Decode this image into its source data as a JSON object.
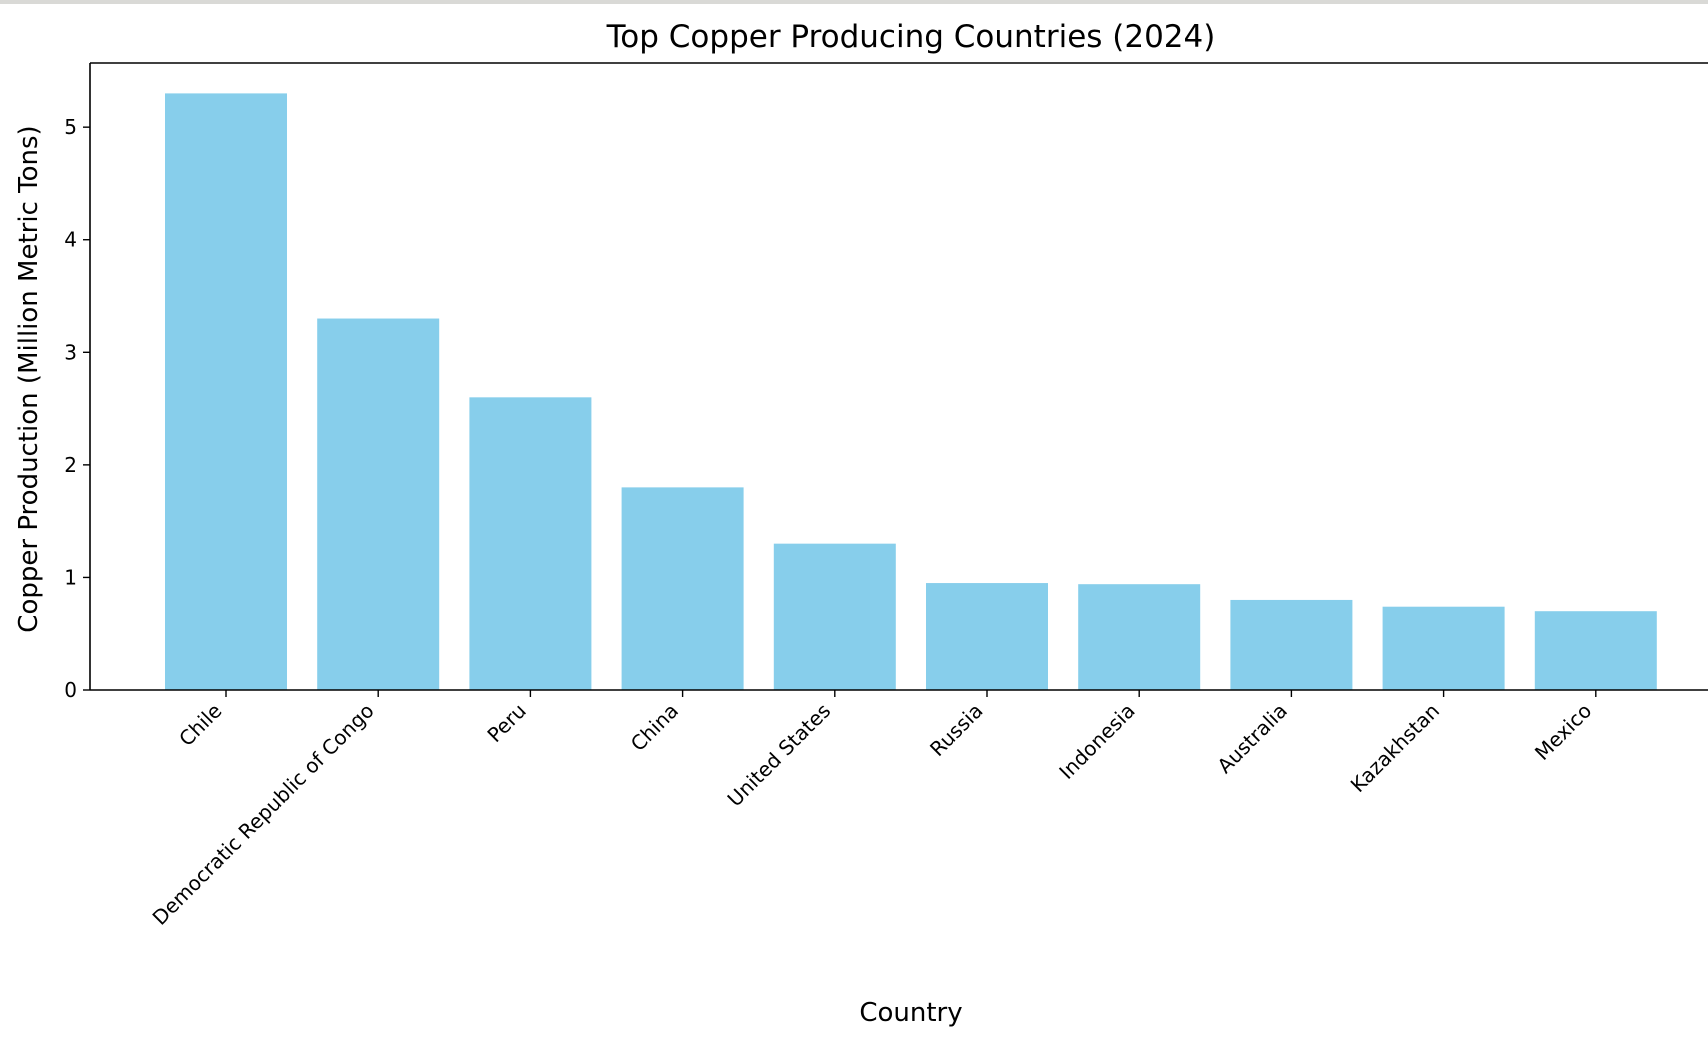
{
  "chart_data": {
    "type": "bar",
    "title": "Top Copper Producing Countries (2024)",
    "xlabel": "Country",
    "ylabel": "Copper Production (Million Metric Tons)",
    "categories": [
      "Chile",
      "Democratic Republic of Congo",
      "Peru",
      "China",
      "United States",
      "Russia",
      "Indonesia",
      "Australia",
      "Kazakhstan",
      "Mexico"
    ],
    "values": [
      5.3,
      3.3,
      2.6,
      1.8,
      1.3,
      0.95,
      0.94,
      0.8,
      0.74,
      0.7
    ],
    "yticks": [
      0,
      1,
      2,
      3,
      4,
      5
    ],
    "ylim": [
      0,
      5.57
    ],
    "grid": false,
    "colors": {
      "bar": "#87ceeb",
      "axis": "#000000"
    }
  }
}
